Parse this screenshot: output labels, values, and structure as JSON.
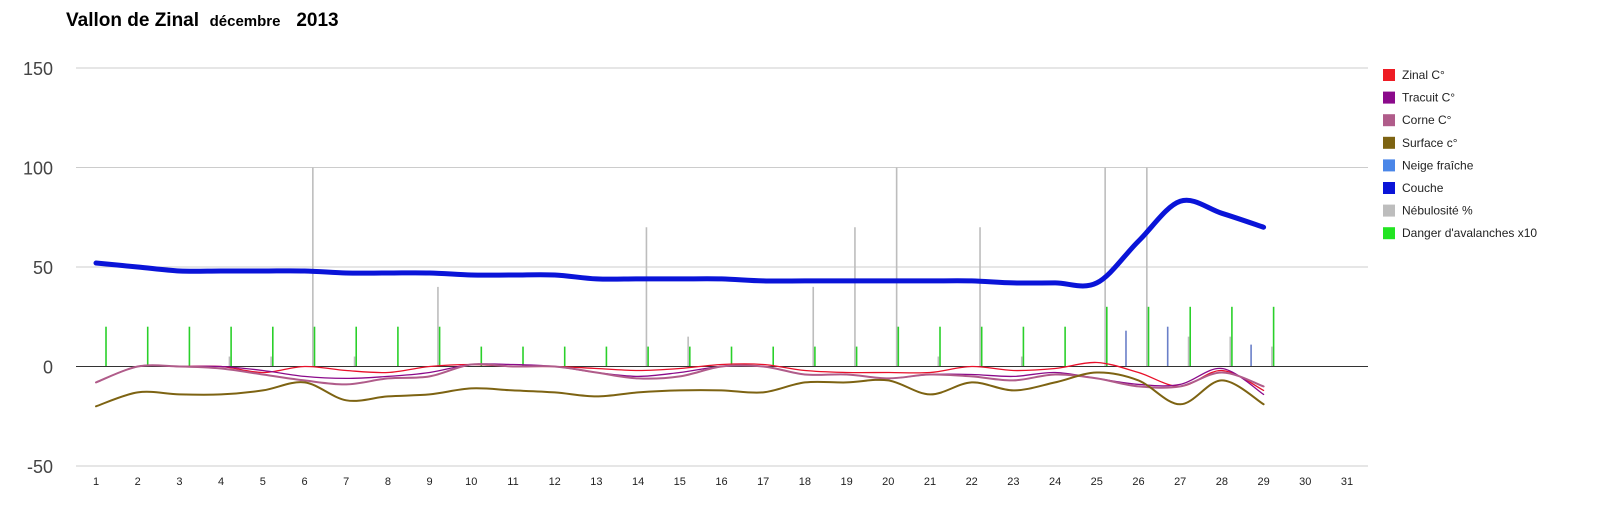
{
  "chart_data": {
    "type": "line",
    "title": "Vallon de Zinal",
    "title_month": "décembre",
    "title_year": "2013",
    "xlabel": "",
    "ylabel": "",
    "ylim": [
      -50,
      150
    ],
    "y_ticks": [
      "150",
      "100",
      "50",
      "0",
      "-50"
    ],
    "y_tick_values": [
      150,
      100,
      50,
      0,
      -50
    ],
    "categories": [
      "1",
      "2",
      "3",
      "4",
      "5",
      "6",
      "7",
      "8",
      "9",
      "10",
      "11",
      "12",
      "13",
      "14",
      "15",
      "16",
      "17",
      "18",
      "19",
      "20",
      "21",
      "22",
      "23",
      "24",
      "25",
      "26",
      "27",
      "28",
      "29",
      "30",
      "31"
    ],
    "grid": true,
    "legend_position": "right",
    "line_series": [
      {
        "name": "Zinal C°",
        "color": "#e8102a",
        "width": 1.3,
        "values": [
          -8,
          0,
          0,
          0,
          -3,
          0,
          -2,
          -3,
          0,
          1,
          0,
          0,
          -1,
          -2,
          -1,
          1,
          1,
          -2,
          -3,
          -3,
          -3,
          0,
          -2,
          -1,
          2,
          -3,
          -10,
          -2,
          -12
        ]
      },
      {
        "name": "Tracuit C°",
        "color": "#8b0a8b",
        "width": 1.3,
        "values": [
          -8,
          0,
          0,
          0,
          -2,
          -5,
          -6,
          -5,
          -3,
          1,
          1,
          0,
          -3,
          -5,
          -3,
          0,
          0,
          -4,
          -4,
          -6,
          -4,
          -4,
          -5,
          -3,
          -6,
          -9,
          -9,
          -1,
          -14
        ]
      },
      {
        "name": "Corne C°",
        "color": "#b05c8a",
        "width": 2.0,
        "values": [
          -8,
          0,
          0,
          -1,
          -4,
          -7,
          -9,
          -6,
          -5,
          1,
          0,
          0,
          -3,
          -6,
          -5,
          0,
          0,
          -4,
          -4,
          -6,
          -4,
          -5,
          -7,
          -4,
          -6,
          -10,
          -10,
          -3,
          -10
        ]
      },
      {
        "name": "Surface c°",
        "color": "#7d6312",
        "width": 2.0,
        "values": [
          -20,
          -13,
          -14,
          -14,
          -12,
          -8,
          -17,
          -15,
          -14,
          -11,
          -12,
          -13,
          -15,
          -13,
          -12,
          -12,
          -13,
          -8,
          -8,
          -7,
          -14,
          -8,
          -12,
          -8,
          -3,
          -7,
          -19,
          -7,
          -19
        ]
      },
      {
        "name": "Couche",
        "color": "#0a14d8",
        "width": 5,
        "values": [
          52,
          50,
          48,
          48,
          48,
          48,
          47,
          47,
          47,
          46,
          46,
          46,
          44,
          44,
          44,
          44,
          43,
          43,
          43,
          43,
          43,
          43,
          42,
          42,
          42,
          63,
          83,
          77,
          70
        ]
      }
    ],
    "bar_series": [
      {
        "name": "Nébulosité %",
        "color": "#bdbdbd",
        "offset": 0.2,
        "values": [
          0,
          0,
          0,
          5,
          5,
          100,
          5,
          0,
          40,
          0,
          0,
          0,
          0,
          70,
          15,
          0,
          0,
          40,
          70,
          100,
          5,
          70,
          5,
          0,
          100,
          100,
          15,
          15,
          10
        ]
      },
      {
        "name": "Danger d'avalanches x10",
        "color": "#2ad02a",
        "offset": 0.24,
        "values": [
          20,
          20,
          20,
          20,
          20,
          20,
          20,
          20,
          20,
          10,
          10,
          10,
          10,
          10,
          10,
          10,
          10,
          10,
          10,
          20,
          20,
          20,
          20,
          20,
          30,
          30,
          30,
          30,
          30
        ]
      },
      {
        "name": "Neige fraîche",
        "color": "#6a7fc8",
        "offset": -0.3,
        "values": [
          0,
          0,
          0,
          0,
          0,
          0,
          0,
          0,
          0,
          0,
          0,
          0,
          0,
          0,
          0,
          0,
          0,
          0,
          0,
          0,
          0,
          0,
          0,
          0,
          0,
          18,
          20,
          0,
          11
        ]
      }
    ],
    "legend": [
      {
        "label": "Zinal C°",
        "color": "#ee1c24"
      },
      {
        "label": "Tracuit C°",
        "color": "#8b0a8b"
      },
      {
        "label": "Corne C°",
        "color": "#b05c8a"
      },
      {
        "label": "Surface c°",
        "color": "#7d6312"
      },
      {
        "label": "Neige fraîche",
        "color": "#4a86e8"
      },
      {
        "label": "Couche",
        "color": "#0a14d8"
      },
      {
        "label": "Nébulosité %",
        "color": "#bdbdbd"
      },
      {
        "label": "Danger d'avalanches x10",
        "color": "#22e422"
      }
    ]
  }
}
